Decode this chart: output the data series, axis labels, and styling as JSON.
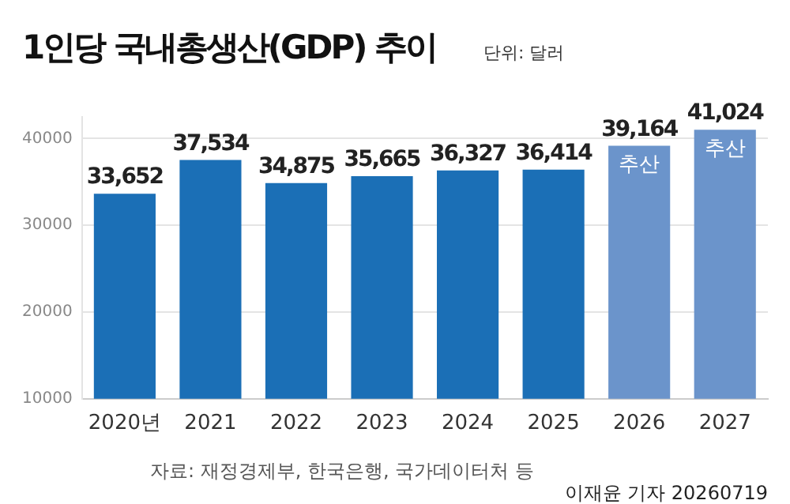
{
  "chart_data": {
    "type": "bar",
    "title": "1인당 국내총생산(GDP) 추이",
    "subtitle": "단위: 달러",
    "categories": [
      "2020년",
      "2021",
      "2022",
      "2023",
      "2024",
      "2025",
      "2026",
      "2027"
    ],
    "values": [
      33652,
      37534,
      34875,
      35665,
      36327,
      36414,
      39164,
      41024
    ],
    "value_labels": [
      "33,652",
      "37,534",
      "34,875",
      "35,665",
      "36,327",
      "36,414",
      "39,164",
      "41,024"
    ],
    "colors": [
      "#1b6fb6",
      "#1b6fb6",
      "#1b6fb6",
      "#1b6fb6",
      "#1b6fb6",
      "#1b6fb6",
      "#6b94cb",
      "#6b94cb"
    ],
    "ylim": [
      10000,
      42500
    ],
    "yticks": [
      10000,
      20000,
      30000,
      40000
    ],
    "grid": "y",
    "annotations": [
      {
        "text": "추산",
        "x": "2026",
        "y": 39164
      },
      {
        "text": "추산",
        "x": "2027",
        "y": 41024
      },
      "자료: 재정경제부, 한국은행, 국가데이터처 등",
      "이재윤 기자 20260719"
    ]
  }
}
